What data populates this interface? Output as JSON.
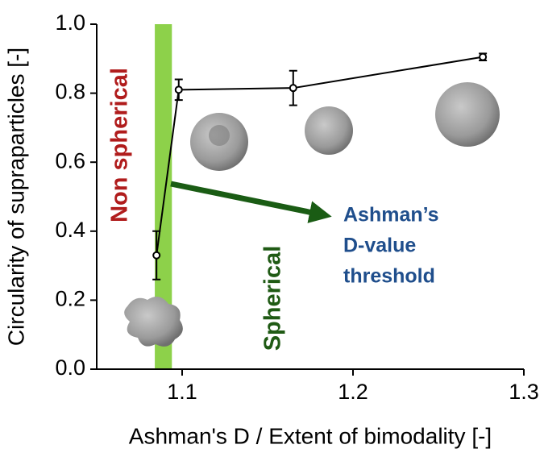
{
  "chart_data": {
    "type": "line",
    "xlabel": "Ashman's D / Extent of bimodality [-]",
    "ylabel": "Circularity of supraparticles [-]",
    "x": [
      1.085,
      1.098,
      1.165,
      1.276
    ],
    "series": [
      {
        "color": "#000000",
        "values": [
          0.33,
          0.81,
          0.815,
          0.905
        ],
        "errors": [
          0.07,
          0.03,
          0.05,
          0.01
        ]
      }
    ],
    "xlim": [
      1.05,
      1.3
    ],
    "xticks": [
      1.1,
      1.2,
      1.3
    ],
    "ylim": [
      0,
      1
    ],
    "yticks": [
      {
        "value": 0,
        "label": "0.0"
      },
      0.2,
      0.4,
      0.6,
      0.8,
      {
        "value": 1,
        "label": "1.0"
      }
    ],
    "threshold_band": [
      1.084,
      1.094
    ],
    "band_color": "#8dd14a",
    "annotations": {
      "non_spherical": "Non spherical",
      "spherical": "Spherical",
      "threshold": [
        "Ashman’s",
        "D-value",
        "threshold"
      ]
    }
  }
}
